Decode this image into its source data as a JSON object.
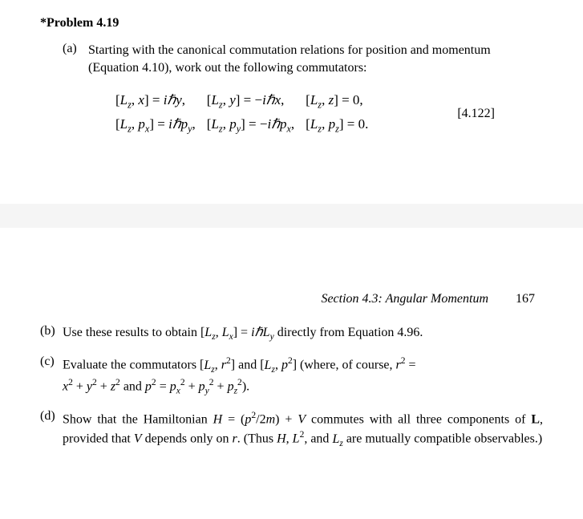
{
  "problem_title": "*Problem 4.19",
  "part_a": {
    "label": "(a)",
    "text": "Starting with the canonical commutation relations for position and momentum (Equation 4.10), work out the following commutators:"
  },
  "equations": {
    "row1": {
      "c1": "[L_z, x] = iℏy,",
      "c2": "[L_z, y] = −iℏx,",
      "c3": "[L_z, z] = 0,"
    },
    "row2": {
      "c1": "[L_z, p_x] = iℏp_y,",
      "c2": "[L_z, p_y] = −iℏp_x,",
      "c3": "[L_z, p_z] = 0."
    },
    "number": "[4.122]"
  },
  "section": {
    "title": "Section 4.3: Angular Momentum",
    "page": "167"
  },
  "part_b": {
    "label": "(b)",
    "text": "Use these results to obtain [L_z, L_x] = iℏL_y directly from Equation 4.96."
  },
  "part_c": {
    "label": "(c)",
    "line1": "Evaluate the commutators [L_z, r²] and [L_z, p²] (where, of course, r² =",
    "line2": "x² + y² + z² and p² = p_x² + p_y² + p_z²)."
  },
  "part_d": {
    "label": "(d)",
    "text": "Show that the Hamiltonian H = (p²/2m) + V commutes with all three components of L, provided that V depends only on r. (Thus H, L², and L_z are mutually compatible observables.)"
  }
}
